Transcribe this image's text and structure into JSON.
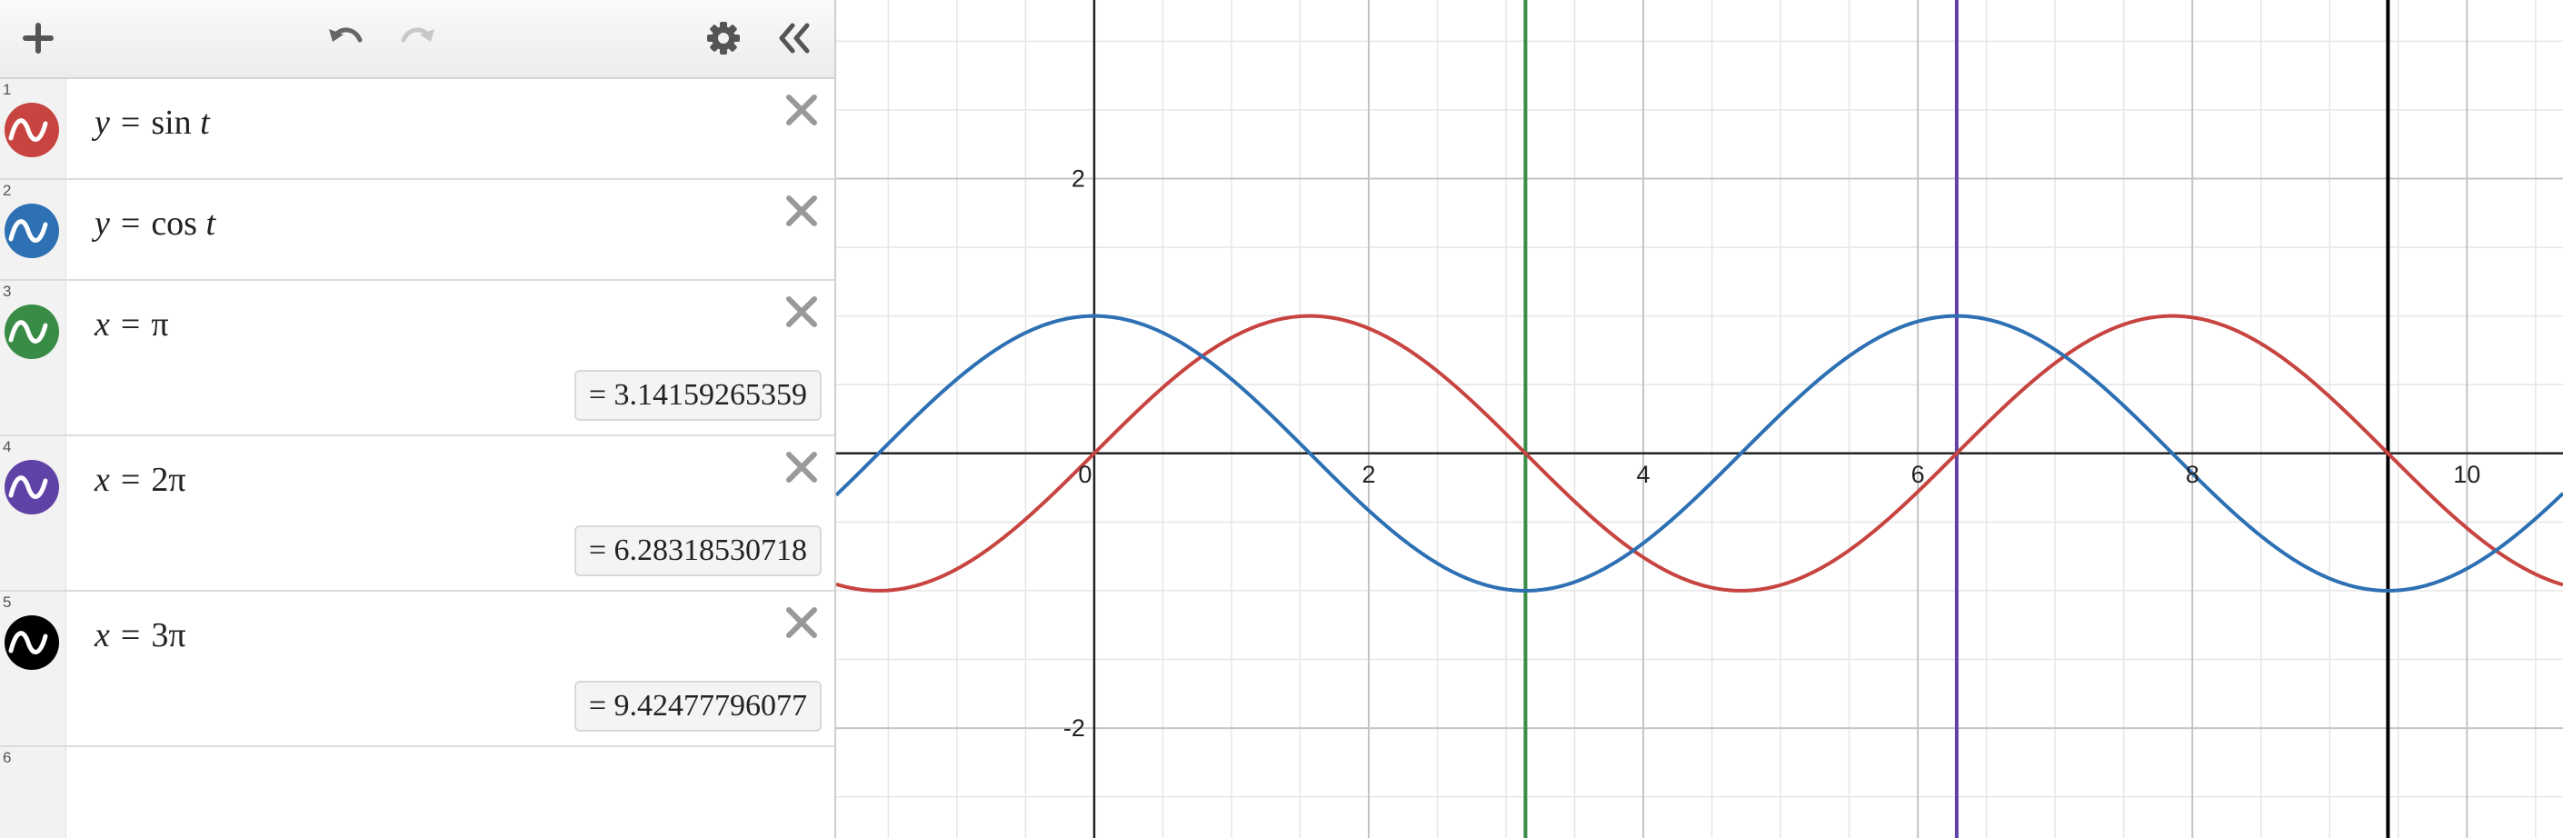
{
  "toolbar": {
    "add_icon": "plus-icon",
    "undo_icon": "undo-icon",
    "redo_icon": "redo-icon",
    "settings_icon": "gear-icon",
    "collapse_icon": "double-chevron-left-icon"
  },
  "expressions": [
    {
      "num": "1",
      "lhs": "y",
      "rhs_fn": "sin",
      "rhs_var": "t",
      "rhs": "",
      "result": "",
      "color": "#c74440"
    },
    {
      "num": "2",
      "lhs": "y",
      "rhs_fn": "cos",
      "rhs_var": "t",
      "rhs": "",
      "result": "",
      "color": "#2d70b3"
    },
    {
      "num": "3",
      "lhs": "x",
      "rhs_fn": "",
      "rhs_var": "",
      "rhs": "π",
      "result": "= 3.14159265359",
      "color": "#388c46"
    },
    {
      "num": "4",
      "lhs": "x",
      "rhs_fn": "",
      "rhs_var": "",
      "rhs": "2π",
      "result": "= 6.28318530718",
      "color": "#6042a6"
    },
    {
      "num": "5",
      "lhs": "x",
      "rhs_fn": "",
      "rhs_var": "",
      "rhs": "3π",
      "result": "= 9.42477796077",
      "color": "#000000"
    },
    {
      "num": "6",
      "lhs": "",
      "rhs_fn": "",
      "rhs_var": "",
      "rhs": "",
      "result": "",
      "color": ""
    }
  ],
  "graph": {
    "x_ticks": [
      "0",
      "2",
      "4",
      "6",
      "8",
      "10"
    ],
    "y_ticks": [
      "2",
      "-2"
    ]
  },
  "chart_data": {
    "type": "line",
    "xlim": [
      -1.88,
      10.7
    ],
    "ylim": [
      -2.8,
      3.3
    ],
    "grid": true,
    "curves": [
      {
        "expr": "y = sin t",
        "color": "#c74440"
      },
      {
        "expr": "y = cos t",
        "color": "#2d70b3"
      }
    ],
    "vertical_lines": [
      {
        "x": 3.14159265359,
        "color": "#388c46"
      },
      {
        "x": 6.28318530718,
        "color": "#6042a6"
      },
      {
        "x": 9.42477796077,
        "color": "#000000"
      }
    ]
  }
}
